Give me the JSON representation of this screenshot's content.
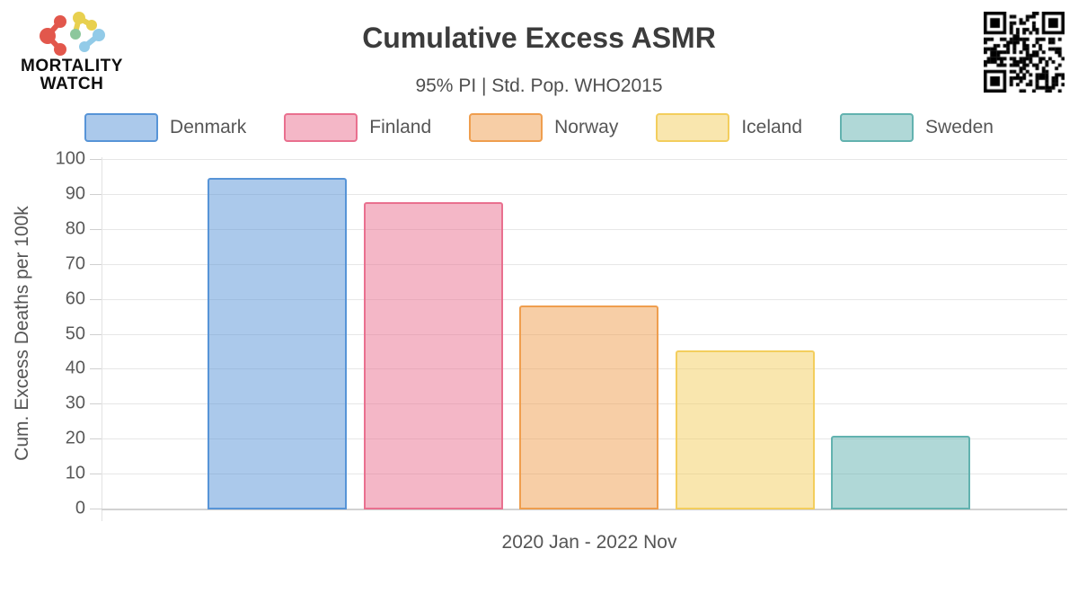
{
  "brand": {
    "logo_icon": "molecule-logo-icon",
    "name_line1": "MORTALITY",
    "name_line2": "WATCH"
  },
  "header": {
    "title": "Cumulative Excess ASMR",
    "subtitle": "95% PI | Std. Pop. WHO2015",
    "qr_icon": "qr-code"
  },
  "chart_data": {
    "type": "bar",
    "title": "Cumulative Excess ASMR",
    "subtitle": "95% PI | Std. Pop. WHO2015",
    "categories": [
      "Denmark",
      "Finland",
      "Norway",
      "Iceland",
      "Sweden"
    ],
    "values": [
      94.5,
      87.7,
      58,
      45.2,
      20.8
    ],
    "series_colors": [
      {
        "name": "Denmark",
        "border": "#5794D7",
        "fill": "rgba(87,148,215,0.5)"
      },
      {
        "name": "Finland",
        "border": "#E9708F",
        "fill": "rgba(233,112,143,0.5)"
      },
      {
        "name": "Norway",
        "border": "#EF9E4E",
        "fill": "rgba(239,158,78,0.5)"
      },
      {
        "name": "Iceland",
        "border": "#F3CE5D",
        "fill": "rgba(243,206,93,0.5)"
      },
      {
        "name": "Sweden",
        "border": "#62B2AF",
        "fill": "rgba(98,178,175,0.5)"
      }
    ],
    "xlabel": "2020 Jan - 2022 Nov",
    "ylabel": "Cum. Excess Deaths per 100k",
    "ylim": [
      0,
      100
    ],
    "ytick_step": 10,
    "yticks": [
      0,
      10,
      20,
      30,
      40,
      50,
      60,
      70,
      80,
      90,
      100
    ],
    "grid": true,
    "legend_position": "top"
  }
}
